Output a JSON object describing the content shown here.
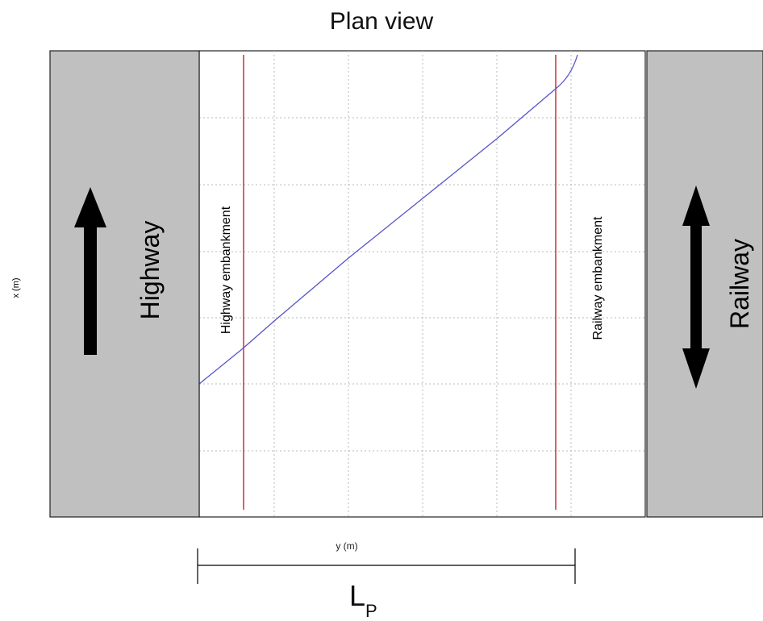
{
  "title": "Plan view",
  "left_block": {
    "label": "Highway",
    "color": "#c0c0c0",
    "arrow": "up"
  },
  "right_block": {
    "label": "Railway",
    "color": "#c0c0c0",
    "arrow": "up-down"
  },
  "plot": {
    "xlabel": "y (m)",
    "ylabel": "x (m)",
    "grid": true,
    "left_line_label": "Highway embankment",
    "right_line_label": "Railway embankment",
    "embankment_line_color": "#cc3333",
    "trajectory_color": "#5555cc"
  },
  "dimension": {
    "symbol": "L",
    "subscript": "P"
  }
}
